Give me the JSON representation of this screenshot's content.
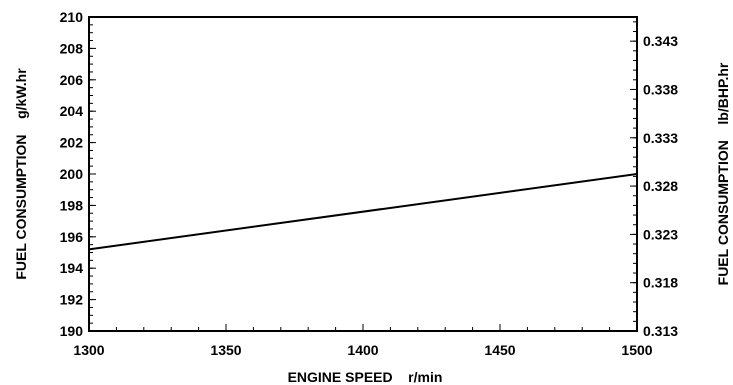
{
  "chart_data": {
    "type": "line",
    "xlabel": "ENGINE SPEED    r/min",
    "ylabel": "FUEL CONSUMPTION    g/kW.hr",
    "y2label": "FUEL CONSUMPTION    lb/BHP.hr",
    "xlim": [
      1300,
      1500
    ],
    "ylim": [
      190,
      210
    ],
    "y2lim": [
      0.313,
      0.3455
    ],
    "x_ticks": [
      "1300",
      "1350",
      "1400",
      "1450",
      "1500"
    ],
    "y_ticks": [
      "190",
      "192",
      "194",
      "196",
      "198",
      "200",
      "202",
      "204",
      "206",
      "208",
      "210"
    ],
    "y2_ticks": [
      "0.313",
      "0.318",
      "0.323",
      "0.328",
      "0.333",
      "0.338",
      "0.343"
    ],
    "grid": false,
    "series": [
      {
        "x": [
          1300,
          1500
        ],
        "y": [
          195.2,
          200.0
        ]
      }
    ]
  }
}
